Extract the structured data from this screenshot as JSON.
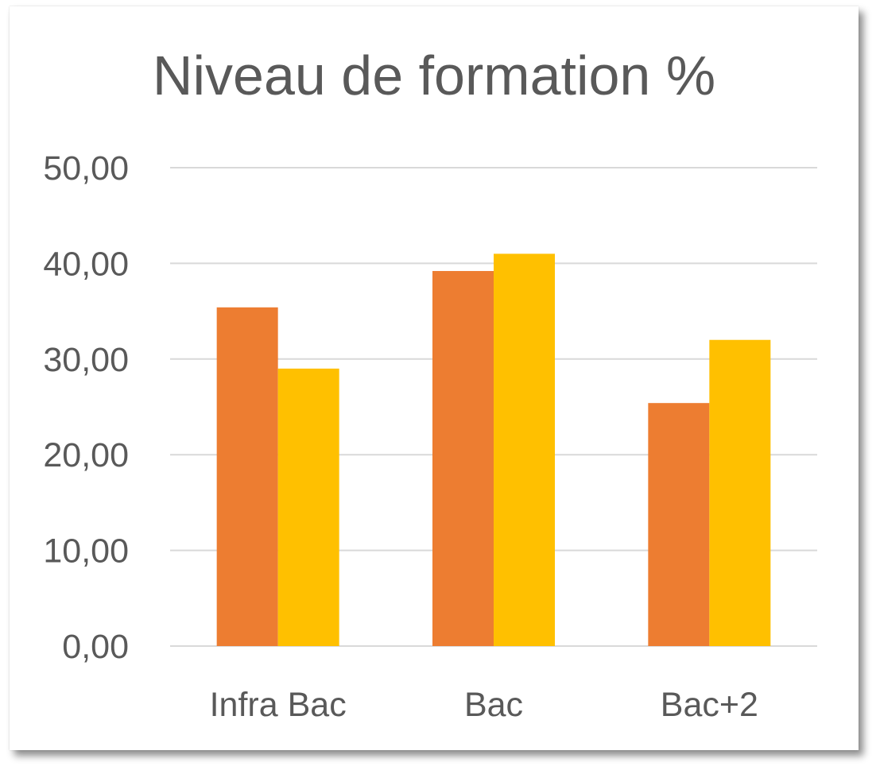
{
  "chart_data": {
    "type": "bar",
    "title": "Niveau de formation %",
    "categories": [
      "Infra Bac",
      "Bac",
      "Bac+2"
    ],
    "series": [
      {
        "values": [
          35.4,
          39.2,
          25.4
        ],
        "color": "#ED7D31"
      },
      {
        "values": [
          29.0,
          41.0,
          32.0
        ],
        "color": "#FFC000"
      }
    ],
    "ylim": [
      0,
      50
    ],
    "yticks": [
      "0,00",
      "10,00",
      "20,00",
      "30,00",
      "40,00",
      "50,00"
    ],
    "grid": true,
    "legend": "none"
  }
}
